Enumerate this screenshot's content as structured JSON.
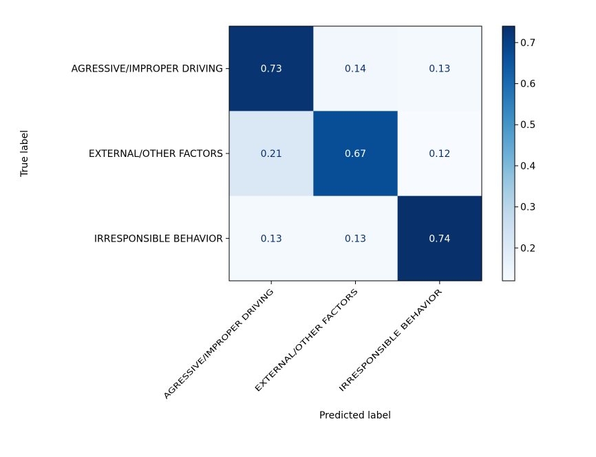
{
  "chart_data": {
    "type": "heatmap",
    "xlabel": "Predicted label",
    "ylabel": "True label",
    "x_categories": [
      "AGRESSIVE/IMPROPER DRIVING",
      "EXTERNAL/OTHER FACTORS",
      "IRRESPONSIBLE BEHAVIOR"
    ],
    "y_categories": [
      "AGRESSIVE/IMPROPER DRIVING",
      "EXTERNAL/OTHER FACTORS",
      "IRRESPONSIBLE BEHAVIOR"
    ],
    "values": [
      [
        0.73,
        0.14,
        0.13
      ],
      [
        0.21,
        0.67,
        0.12
      ],
      [
        0.13,
        0.13,
        0.74
      ]
    ],
    "cell_labels": [
      [
        "0.73",
        "0.14",
        "0.13"
      ],
      [
        "0.21",
        "0.67",
        "0.12"
      ],
      [
        "0.13",
        "0.13",
        "0.74"
      ]
    ],
    "colormap": "Blues",
    "colorbar": {
      "range": [
        0.12,
        0.74
      ],
      "ticks": [
        0.2,
        0.3,
        0.4,
        0.5,
        0.6,
        0.7
      ],
      "tick_labels": [
        "0.2",
        "0.3",
        "0.4",
        "0.5",
        "0.6",
        "0.7"
      ]
    },
    "grid": false
  }
}
